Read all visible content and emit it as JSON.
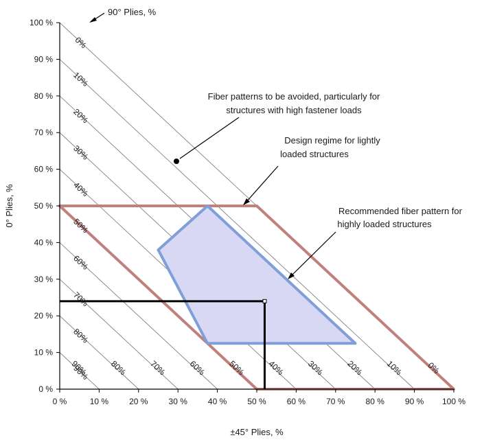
{
  "chart_data": {
    "type": "line",
    "title": "",
    "xlabel": "±45° Plies, %",
    "ylabel": "0° Plies, %",
    "xlim": [
      0,
      100
    ],
    "ylim": [
      0,
      100
    ],
    "x_ticks": [
      0,
      10,
      20,
      30,
      40,
      50,
      60,
      70,
      80,
      90,
      100
    ],
    "y_ticks": [
      0,
      10,
      20,
      30,
      40,
      50,
      60,
      70,
      80,
      90,
      100
    ],
    "tick_suffix": " %",
    "grid": false,
    "plies_90_label": "90° Plies, %",
    "plies_90_lines": [
      0,
      10,
      20,
      30,
      40,
      50,
      60,
      70,
      80,
      90
    ],
    "plies_90_line_labels_upper": [
      {
        "value": 0,
        "label": "0%"
      },
      {
        "value": 10,
        "label": "10%"
      },
      {
        "value": 20,
        "label": "20%"
      },
      {
        "value": 30,
        "label": "30%"
      },
      {
        "value": 40,
        "label": "40%"
      },
      {
        "value": 50,
        "label": "50%"
      },
      {
        "value": 60,
        "label": "60%"
      },
      {
        "value": 70,
        "label": "70%"
      },
      {
        "value": 80,
        "label": "80%"
      },
      {
        "value": 90,
        "label": "90%"
      }
    ],
    "plies_90_line_labels_lower": [
      {
        "value": 90,
        "label": "90%"
      },
      {
        "value": 80,
        "label": "80%"
      },
      {
        "value": 70,
        "label": "70%"
      },
      {
        "value": 60,
        "label": "60%"
      },
      {
        "value": 50,
        "label": "50%"
      },
      {
        "value": 40,
        "label": "40%"
      },
      {
        "value": 30,
        "label": "30%"
      },
      {
        "value": 20,
        "label": "20%"
      },
      {
        "value": 10,
        "label": "10%"
      },
      {
        "value": 0,
        "label": "0%"
      }
    ],
    "regions": [
      {
        "id": "light",
        "name": "Design regime for lightly loaded structures",
        "points": [
          [
            0,
            50
          ],
          [
            50,
            0
          ],
          [
            100,
            0
          ],
          [
            50,
            50
          ]
        ],
        "stroke": "#c0807c"
      },
      {
        "id": "heavy",
        "name": "Recommended fiber pattern for highly loaded structures",
        "points": [
          [
            37.5,
            50
          ],
          [
            25,
            38
          ],
          [
            37.5,
            12.5
          ],
          [
            75,
            12.5
          ]
        ],
        "stroke": "#7f9fd6",
        "fill": "#d8d8f5"
      }
    ],
    "example_point": {
      "x": 52,
      "y": 24
    },
    "avoid_marker": {
      "x": 30,
      "y": 62
    },
    "annotations": [
      {
        "id": "avoid",
        "lines": [
          "Fiber patterns to be avoided, particularly for",
          "structures with high fastener loads"
        ],
        "target": {
          "x": 30,
          "y": 62
        }
      },
      {
        "id": "light",
        "lines": [
          "Design regime for lightly",
          "loaded structures"
        ],
        "target": {
          "x": 47,
          "y": 50
        }
      },
      {
        "id": "heavy",
        "lines": [
          "Recommended  fiber pattern for",
          "highly loaded structures"
        ],
        "target": {
          "x": 58,
          "y": 30
        }
      }
    ],
    "colors": {
      "axis": "#000000",
      "diagonal": "#808080",
      "light_stroke": "#c0807c",
      "heavy_stroke": "#7f9fd6",
      "heavy_fill": "#d8d8f5"
    }
  }
}
